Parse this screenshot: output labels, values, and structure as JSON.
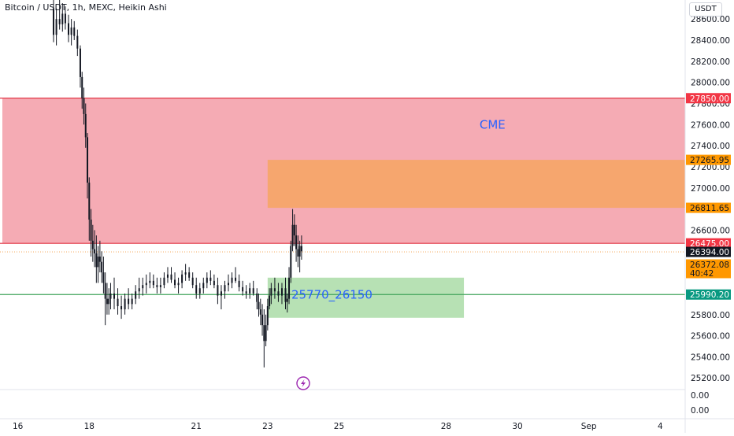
{
  "header": {
    "title": "Bitcoin / USDT, 1h, MEXC, Heikin Ashi",
    "currency": "USDT"
  },
  "colors": {
    "up": "#26a69a",
    "down": "#ef5350",
    "candle": "#131722",
    "zone_red": "#f4a6b0",
    "zone_orange": "#f6a56a",
    "zone_green": "#b3dfb0",
    "label_red": "#f23645",
    "label_orange": "#ff9800",
    "label_green": "#089981",
    "label_text_blue": "#2962ff"
  },
  "chart_data": {
    "type": "candlestick",
    "style": "Heikin Ashi",
    "ylim": [
      25090,
      28780
    ],
    "xlim_days": [
      15.5,
      34.7
    ],
    "y_ticks": [
      "28600.00",
      "28400.00",
      "28200.00",
      "28000.00",
      "27800.00",
      "27600.00",
      "27400.00",
      "27200.00",
      "27000.00",
      "26800.00",
      "26600.00",
      "26400.00",
      "26200.00",
      "26000.00",
      "25800.00",
      "25600.00",
      "25400.00",
      "25200.00"
    ],
    "x_ticks": [
      {
        "label": "16",
        "day": 16
      },
      {
        "label": "18",
        "day": 18
      },
      {
        "label": "21",
        "day": 21
      },
      {
        "label": "23",
        "day": 23
      },
      {
        "label": "25",
        "day": 25
      },
      {
        "label": "28",
        "day": 28
      },
      {
        "label": "30",
        "day": 30
      },
      {
        "label": "Sep",
        "day": 32
      },
      {
        "label": "4",
        "day": 34
      }
    ],
    "zones": [
      {
        "name": "cme-zone",
        "from_day": 15.5,
        "to_day": 34.7,
        "low": 26475,
        "high": 27850,
        "color": "zone_red"
      },
      {
        "name": "orange-zone",
        "from_day": 23.0,
        "to_day": 34.7,
        "low": 26811.65,
        "high": 27265.95,
        "color": "zone_orange"
      },
      {
        "name": "green-zone",
        "from_day": 23.0,
        "to_day": 28.5,
        "low": 25770,
        "high": 26150,
        "color": "zone_green"
      }
    ],
    "hlines": [
      {
        "name": "level-27850-line",
        "price": 27850,
        "color": "#e03544",
        "style": "solid"
      },
      {
        "name": "level-26475-line",
        "price": 26475,
        "color": "#e03544",
        "style": "solid"
      },
      {
        "name": "level-25990-line",
        "price": 25990.2,
        "color": "#3fa35a",
        "style": "solid"
      },
      {
        "name": "current-price-line",
        "price": 26394,
        "color": "#f6b26b",
        "style": "dotted"
      }
    ],
    "annotations": [
      {
        "name": "cme-annotation",
        "text": "CME",
        "day": 29.3,
        "price": 27600,
        "size": 15
      },
      {
        "name": "range-annotation",
        "text": "25770_26150",
        "day": 24.8,
        "price": 25990,
        "size": 15
      }
    ],
    "price_labels": [
      {
        "name": "price-label-27850",
        "text": "27850.00",
        "price": 27850,
        "bg": "label_red",
        "fg": "#ffffff"
      },
      {
        "name": "price-label-27265",
        "text": "27265.95",
        "price": 27265.95,
        "bg": "label_orange",
        "fg": "#131722"
      },
      {
        "name": "price-label-26811",
        "text": "26811.65",
        "price": 26811.65,
        "bg": "label_orange",
        "fg": "#131722"
      },
      {
        "name": "price-label-26475",
        "text": "26475.00",
        "price": 26475,
        "bg": "label_red",
        "fg": "#ffffff"
      },
      {
        "name": "price-label-26394",
        "text": "26394.00",
        "price": 26394,
        "bg": "#131722",
        "fg": "#ffffff"
      },
      {
        "name": "price-label-25990",
        "text": "25990.20",
        "price": 25990.2,
        "bg": "label_green",
        "fg": "#ffffff"
      }
    ],
    "countdown_label": {
      "text": "26372.08",
      "sub": "40:42",
      "price": 26320
    },
    "volume_ticks": [
      "0.00",
      "0.00"
    ],
    "candles": [
      [
        17.0,
        28700,
        28780,
        28380,
        28450
      ],
      [
        17.08,
        28450,
        28700,
        28350,
        28600
      ],
      [
        17.17,
        28600,
        28780,
        28500,
        28550
      ],
      [
        17.25,
        28550,
        28750,
        28480,
        28650
      ],
      [
        17.33,
        28650,
        28720,
        28500,
        28560
      ],
      [
        17.42,
        28560,
        28640,
        28380,
        28450
      ],
      [
        17.5,
        28450,
        28600,
        28350,
        28520
      ],
      [
        17.58,
        28520,
        28580,
        28400,
        28440
      ],
      [
        17.67,
        28440,
        28500,
        28250,
        28320
      ],
      [
        17.75,
        28320,
        28350,
        27950,
        28050
      ],
      [
        17.8,
        28050,
        28100,
        27750,
        27850
      ],
      [
        17.85,
        27850,
        27950,
        27600,
        27700
      ],
      [
        17.9,
        27700,
        27800,
        27380,
        27480
      ],
      [
        17.95,
        27480,
        27520,
        26900,
        27050
      ],
      [
        18.0,
        27050,
        27100,
        26500,
        26700
      ],
      [
        18.05,
        26700,
        26800,
        26350,
        26500
      ],
      [
        18.1,
        26500,
        26650,
        26300,
        26420
      ],
      [
        18.15,
        26420,
        26600,
        26250,
        26380
      ],
      [
        18.2,
        26380,
        26550,
        26100,
        26250
      ],
      [
        18.25,
        26250,
        26450,
        26100,
        26350
      ],
      [
        18.3,
        26350,
        26500,
        26200,
        26300
      ],
      [
        18.35,
        26300,
        26400,
        26100,
        26200
      ],
      [
        18.4,
        26200,
        26350,
        26000,
        26100
      ],
      [
        18.45,
        26100,
        26200,
        25700,
        25950
      ],
      [
        18.5,
        25950,
        26100,
        25800,
        25900
      ],
      [
        18.55,
        25900,
        26050,
        25800,
        25950
      ],
      [
        18.6,
        25950,
        26100,
        25850,
        26000
      ],
      [
        18.7,
        26000,
        26150,
        25850,
        25950
      ],
      [
        18.8,
        25950,
        26050,
        25800,
        25880
      ],
      [
        18.9,
        25880,
        25980,
        25760,
        25850
      ],
      [
        19.0,
        25850,
        26000,
        25800,
        25950
      ],
      [
        19.1,
        25950,
        26050,
        25850,
        25900
      ],
      [
        19.2,
        25900,
        26000,
        25850,
        25950
      ],
      [
        19.3,
        25950,
        26080,
        25900,
        26020
      ],
      [
        19.4,
        26020,
        26150,
        25950,
        26050
      ],
      [
        19.5,
        26050,
        26150,
        25980,
        26080
      ],
      [
        19.6,
        26080,
        26180,
        26000,
        26100
      ],
      [
        19.7,
        26100,
        26200,
        26050,
        26120
      ],
      [
        19.8,
        26120,
        26180,
        26050,
        26080
      ],
      [
        19.9,
        26080,
        26150,
        26000,
        26060
      ],
      [
        20.0,
        26060,
        26150,
        26000,
        26080
      ],
      [
        20.1,
        26080,
        26200,
        26050,
        26150
      ],
      [
        20.2,
        26150,
        26250,
        26100,
        26180
      ],
      [
        20.3,
        26180,
        26250,
        26100,
        26130
      ],
      [
        20.4,
        26130,
        26200,
        26050,
        26080
      ],
      [
        20.5,
        26080,
        26150,
        26000,
        26100
      ],
      [
        20.6,
        26100,
        26220,
        26050,
        26180
      ],
      [
        20.7,
        26180,
        26280,
        26120,
        26200
      ],
      [
        20.8,
        26200,
        26250,
        26120,
        26150
      ],
      [
        20.9,
        26150,
        26200,
        26050,
        26080
      ],
      [
        21.0,
        26080,
        26150,
        25950,
        26000
      ],
      [
        21.1,
        26000,
        26100,
        25950,
        26050
      ],
      [
        21.2,
        26050,
        26150,
        26000,
        26100
      ],
      [
        21.3,
        26100,
        26200,
        26050,
        26150
      ],
      [
        21.4,
        26150,
        26220,
        26080,
        26120
      ],
      [
        21.5,
        26120,
        26180,
        26050,
        26080
      ],
      [
        21.6,
        26080,
        26150,
        25900,
        25980
      ],
      [
        21.7,
        25980,
        26080,
        25850,
        26020
      ],
      [
        21.8,
        26020,
        26120,
        25950,
        26080
      ],
      [
        21.9,
        26080,
        26180,
        26020,
        26100
      ],
      [
        22.0,
        26100,
        26200,
        26050,
        26150
      ],
      [
        22.1,
        26150,
        26250,
        26100,
        26120
      ],
      [
        22.2,
        26120,
        26180,
        26020,
        26060
      ],
      [
        22.3,
        26060,
        26120,
        25980,
        26020
      ],
      [
        22.4,
        26020,
        26080,
        25950,
        26000
      ],
      [
        22.5,
        26000,
        26100,
        25950,
        26050
      ],
      [
        22.6,
        26050,
        26120,
        25980,
        26000
      ],
      [
        22.7,
        26000,
        26050,
        25850,
        25920
      ],
      [
        22.75,
        25920,
        26000,
        25780,
        25850
      ],
      [
        22.8,
        25850,
        25950,
        25700,
        25800
      ],
      [
        22.85,
        25800,
        25900,
        25600,
        25700
      ],
      [
        22.9,
        25700,
        25850,
        25300,
        25550
      ],
      [
        22.95,
        25550,
        25800,
        25500,
        25700
      ],
      [
        23.0,
        25700,
        25950,
        25650,
        25880
      ],
      [
        23.05,
        25880,
        26050,
        25850,
        25980
      ],
      [
        23.1,
        25980,
        26100,
        25900,
        26050
      ],
      [
        23.2,
        26050,
        26150,
        25950,
        26020
      ],
      [
        23.3,
        26020,
        26100,
        25920,
        25980
      ],
      [
        23.4,
        25980,
        26100,
        25900,
        26050
      ],
      [
        23.5,
        26050,
        26150,
        25850,
        25920
      ],
      [
        23.55,
        25920,
        26000,
        25820,
        25950
      ],
      [
        23.6,
        25950,
        26250,
        25900,
        26150
      ],
      [
        23.65,
        26150,
        26500,
        26100,
        26450
      ],
      [
        23.7,
        26450,
        26800,
        26400,
        26650
      ],
      [
        23.75,
        26650,
        26750,
        26450,
        26550
      ],
      [
        23.8,
        26550,
        26650,
        26300,
        26420
      ],
      [
        23.85,
        26420,
        26550,
        26250,
        26350
      ],
      [
        23.9,
        26350,
        26500,
        26200,
        26450
      ],
      [
        23.95,
        26450,
        26550,
        26320,
        26400
      ]
    ],
    "icon": "lightning-icon"
  }
}
